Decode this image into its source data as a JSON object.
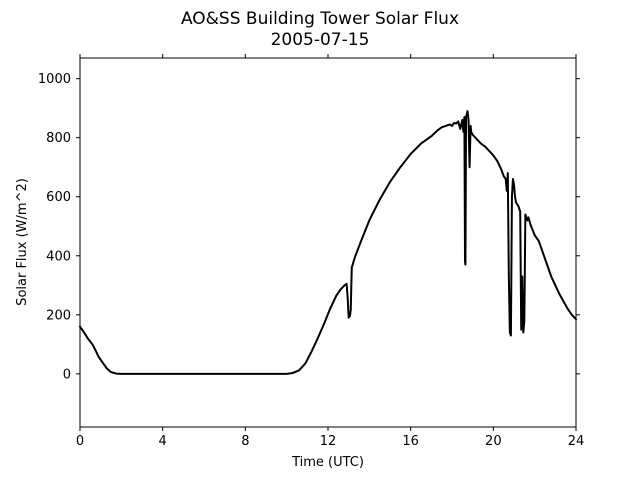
{
  "chart_data": {
    "type": "line",
    "title": "AO&SS Building Tower Solar Flux",
    "subtitle": "2005-07-15",
    "xlabel": "Time (UTC)",
    "ylabel": "Solar Flux (W/m^2)",
    "xlim": [
      0,
      24
    ],
    "ylim": [
      -180,
      1070
    ],
    "xticks": [
      0,
      4,
      8,
      12,
      16,
      20,
      24
    ],
    "yticks": [
      0,
      200,
      400,
      600,
      800,
      1000
    ],
    "grid": false,
    "legend": "none",
    "colors": {
      "line": "#000000"
    },
    "series": [
      {
        "x": [
          0,
          0.2,
          0.4,
          0.6,
          0.75,
          0.9,
          1.1,
          1.3,
          1.5,
          1.75,
          2.0,
          2.5,
          3,
          4,
          5,
          6,
          7,
          8,
          9,
          10,
          10.3,
          10.6,
          10.9,
          11.2,
          11.5,
          11.8,
          12.1,
          12.4,
          12.6,
          12.8,
          12.9,
          12.95,
          13.0,
          13.03,
          13.06,
          13.1,
          13.15,
          13.3,
          13.6,
          14.0,
          14.5,
          15.0,
          15.5,
          16.0,
          16.5,
          17.0,
          17.3,
          17.5,
          17.7,
          17.9,
          18.0,
          18.1,
          18.2,
          18.3,
          18.4,
          18.5,
          18.55,
          18.6,
          18.63,
          18.65,
          18.68,
          18.72,
          18.75,
          18.8,
          18.85,
          18.9,
          18.93,
          18.96,
          19.0,
          19.2,
          19.4,
          19.6,
          19.8,
          20.0,
          20.2,
          20.4,
          20.5,
          20.6,
          20.65,
          20.7,
          20.75,
          20.8,
          20.85,
          20.9,
          20.95,
          21.0,
          21.05,
          21.1,
          21.2,
          21.3,
          21.35,
          21.4,
          21.45,
          21.5,
          21.55,
          21.6,
          21.65,
          21.7,
          21.8,
          22.0,
          22.2,
          22.4,
          22.6,
          22.8,
          23.0,
          23.2,
          23.4,
          23.6,
          23.8,
          24.0
        ],
        "y": [
          160,
          140,
          118,
          100,
          80,
          58,
          38,
          18,
          6,
          1,
          0,
          0,
          0,
          0,
          0,
          0,
          0,
          0,
          0,
          0,
          3,
          12,
          35,
          75,
          120,
          168,
          220,
          265,
          285,
          300,
          305,
          260,
          190,
          210,
          195,
          215,
          360,
          395,
          450,
          520,
          590,
          650,
          700,
          745,
          780,
          805,
          825,
          835,
          840,
          845,
          840,
          850,
          848,
          855,
          830,
          860,
          820,
          870,
          380,
          370,
          870,
          880,
          890,
          860,
          700,
          840,
          820,
          815,
          810,
          795,
          780,
          770,
          755,
          740,
          720,
          690,
          670,
          660,
          620,
          680,
          330,
          140,
          130,
          600,
          660,
          640,
          600,
          580,
          570,
          550,
          150,
          330,
          140,
          180,
          540,
          530,
          520,
          530,
          505,
          470,
          450,
          410,
          370,
          330,
          300,
          270,
          245,
          220,
          200,
          185
        ]
      }
    ]
  }
}
